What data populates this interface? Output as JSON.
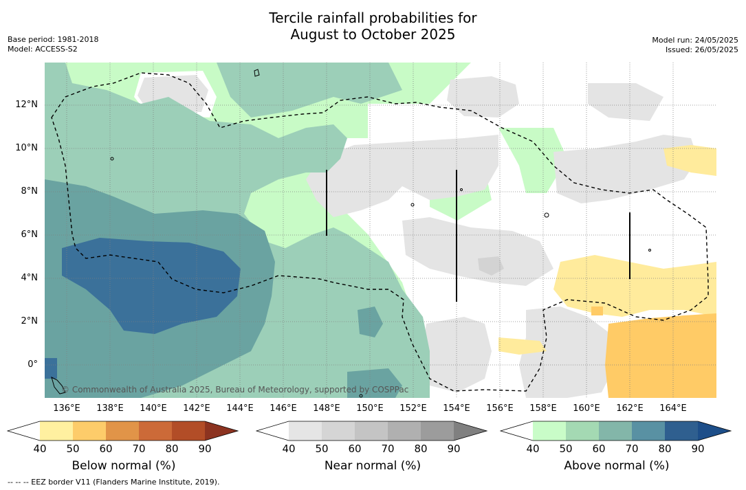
{
  "title_line1": "Tercile rainfall probabilities for",
  "title_line2": "August to October 2025",
  "base_period": "Base period: 1981-2018",
  "model": "Model: ACCESS-S2",
  "model_run": "Model run: 24/05/2025",
  "issued": "Issued: 26/05/2025",
  "copyright": "© Commonwealth of Australia 2025, Bureau of Meteorology, supported by COSPPac",
  "footer": "--  --  -- EEZ border V11 (Flanders Marine Institute, 2019).",
  "x_ticks": [
    "136°E",
    "138°E",
    "140°E",
    "142°E",
    "144°E",
    "146°E",
    "148°E",
    "150°E",
    "152°E",
    "154°E",
    "156°E",
    "158°E",
    "160°E",
    "162°E",
    "164°E"
  ],
  "y_ticks": [
    "12°N",
    "10°N",
    "8°N",
    "6°N",
    "4°N",
    "2°N",
    "0°"
  ],
  "colorbars": [
    {
      "name": "below",
      "title": "Below normal (%)",
      "ticks": [
        "40",
        "50",
        "60",
        "70",
        "80",
        "90"
      ],
      "colors": [
        "#ffffff",
        "#fff0a0",
        "#fdcc6a",
        "#e19448",
        "#cc6a38",
        "#b24d27",
        "#8c3320"
      ]
    },
    {
      "name": "near",
      "title": "Near normal (%)",
      "ticks": [
        "40",
        "50",
        "60",
        "70",
        "80",
        "90"
      ],
      "colors": [
        "#ffffff",
        "#e5e5e5",
        "#d5d5d5",
        "#c4c4c4",
        "#b0b0b0",
        "#9c9c9c",
        "#808080"
      ]
    },
    {
      "name": "above",
      "title": "Above normal (%)",
      "ticks": [
        "40",
        "50",
        "60",
        "70",
        "80",
        "90"
      ],
      "colors": [
        "#ffffff",
        "#c9fcc8",
        "#a4d9b3",
        "#83b6a9",
        "#5991a3",
        "#2f5f8f",
        "#1d4e89"
      ]
    }
  ],
  "map_colors": {
    "above50": "#c8fbc6",
    "above60": "#9ccfb8",
    "above70": "#6aa3a1",
    "above80": "#3b719a",
    "near50": "#e4e4e4",
    "near60": "#d3d3d3",
    "below50": "#ffeb9c",
    "below60": "#ffcb66",
    "below70": "#f1a84e"
  }
}
